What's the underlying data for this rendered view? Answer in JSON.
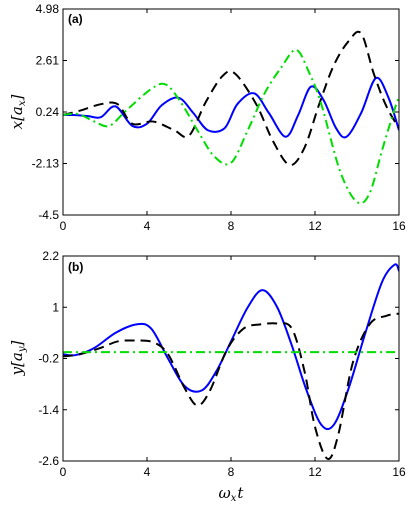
{
  "chart_data": [
    {
      "type": "line",
      "panel_label": "(a)",
      "ylabel": "x[a_x]",
      "ylabel_parts": [
        "x[a",
        "x",
        "]"
      ],
      "xlabel": "",
      "xlim": [
        0,
        16
      ],
      "ylim": [
        -4.5,
        4.98
      ],
      "xticks": [
        0,
        4,
        8,
        12,
        16
      ],
      "yticks": [
        -4.5,
        -2.13,
        0.24,
        2.61,
        4.98
      ],
      "ytick_labels": [
        "-4.5",
        "-2.13",
        "0.24",
        "2.61",
        "4.98"
      ],
      "grid": false,
      "series": [
        {
          "color": "#0000ff",
          "dash": "solid",
          "points": [
            [
              0,
              0.1
            ],
            [
              0.5,
              0.1
            ],
            [
              1.2,
              0.05
            ],
            [
              1.8,
              0.0
            ],
            [
              2.5,
              0.5
            ],
            [
              3.3,
              -0.4
            ],
            [
              4.0,
              -0.3
            ],
            [
              4.7,
              0.55
            ],
            [
              5.5,
              0.9
            ],
            [
              6.2,
              0.2
            ],
            [
              6.9,
              -0.6
            ],
            [
              7.7,
              -0.5
            ],
            [
              8.3,
              0.6
            ],
            [
              9.1,
              1.1
            ],
            [
              9.8,
              0.2
            ],
            [
              10.6,
              -0.9
            ],
            [
              11.2,
              0.1
            ],
            [
              11.8,
              1.4
            ],
            [
              12.4,
              0.8
            ],
            [
              13.0,
              -0.5
            ],
            [
              13.5,
              -0.9
            ],
            [
              14.2,
              0.2
            ],
            [
              14.9,
              1.8
            ],
            [
              15.5,
              0.9
            ],
            [
              16.0,
              -0.6
            ]
          ]
        },
        {
          "color": "#000000",
          "dash": "long-dash",
          "points": [
            [
              0,
              0.1
            ],
            [
              0.8,
              0.3
            ],
            [
              1.8,
              0.6
            ],
            [
              2.6,
              0.6
            ],
            [
              3.3,
              -0.3
            ],
            [
              4.3,
              -0.2
            ],
            [
              5.3,
              -0.6
            ],
            [
              6.0,
              -0.85
            ],
            [
              6.8,
              0.7
            ],
            [
              7.6,
              1.9
            ],
            [
              8.2,
              2.0
            ],
            [
              9.2,
              0.6
            ],
            [
              10.0,
              -1.1
            ],
            [
              10.8,
              -2.2
            ],
            [
              11.5,
              -1.4
            ],
            [
              12.2,
              0.6
            ],
            [
              12.9,
              2.4
            ],
            [
              13.6,
              3.5
            ],
            [
              14.2,
              3.85
            ],
            [
              14.8,
              2.0
            ],
            [
              15.4,
              0.5
            ],
            [
              16.0,
              -0.5
            ]
          ]
        },
        {
          "color": "#00dd00",
          "dash": "dash-dot",
          "points": [
            [
              0,
              0.1
            ],
            [
              0.7,
              0.15
            ],
            [
              1.5,
              -0.2
            ],
            [
              2.2,
              -0.4
            ],
            [
              3.0,
              0.3
            ],
            [
              4.2,
              1.3
            ],
            [
              4.9,
              1.5
            ],
            [
              5.6,
              0.7
            ],
            [
              6.4,
              -0.6
            ],
            [
              7.2,
              -1.8
            ],
            [
              8.0,
              -2.1
            ],
            [
              8.8,
              -0.6
            ],
            [
              9.6,
              1.1
            ],
            [
              10.4,
              2.3
            ],
            [
              11.1,
              3.1
            ],
            [
              11.7,
              2.1
            ],
            [
              12.3,
              0.6
            ],
            [
              13.2,
              -2.5
            ],
            [
              14.0,
              -3.9
            ],
            [
              14.6,
              -3.5
            ],
            [
              15.2,
              -1.5
            ],
            [
              15.8,
              0.4
            ],
            [
              16.0,
              0.9
            ]
          ]
        }
      ]
    },
    {
      "type": "line",
      "panel_label": "(b)",
      "ylabel": "y[a_y]",
      "ylabel_parts": [
        "y[a",
        "y",
        "]"
      ],
      "xlabel": "ω_x t",
      "xlabel_parts": [
        "ω",
        "x",
        "t"
      ],
      "xlim": [
        0,
        16
      ],
      "ylim": [
        -2.6,
        2.2
      ],
      "xticks": [
        0,
        4,
        8,
        12,
        16
      ],
      "yticks": [
        -2.6,
        -1.4,
        -0.2,
        1,
        2.2
      ],
      "ytick_labels": [
        "-2.6",
        "-1.4",
        "-0.2",
        "1",
        "2.2"
      ],
      "grid": false,
      "series": [
        {
          "color": "#0000ff",
          "dash": "solid",
          "points": [
            [
              0,
              -0.1
            ],
            [
              0.6,
              -0.12
            ],
            [
              1.5,
              0.05
            ],
            [
              2.5,
              0.4
            ],
            [
              3.5,
              0.6
            ],
            [
              4.2,
              0.5
            ],
            [
              5.0,
              -0.2
            ],
            [
              5.8,
              -0.85
            ],
            [
              6.6,
              -0.95
            ],
            [
              7.3,
              -0.5
            ],
            [
              8.0,
              0.2
            ],
            [
              8.8,
              1.0
            ],
            [
              9.5,
              1.4
            ],
            [
              10.2,
              1.0
            ],
            [
              10.9,
              0.1
            ],
            [
              11.6,
              -0.95
            ],
            [
              12.3,
              -1.75
            ],
            [
              12.9,
              -1.75
            ],
            [
              13.6,
              -0.9
            ],
            [
              14.4,
              0.4
            ],
            [
              15.2,
              1.6
            ],
            [
              15.8,
              2.0
            ],
            [
              16.0,
              1.85
            ]
          ]
        },
        {
          "color": "#000000",
          "dash": "long-dash",
          "points": [
            [
              0,
              -0.15
            ],
            [
              0.8,
              -0.1
            ],
            [
              1.8,
              0.05
            ],
            [
              2.6,
              0.2
            ],
            [
              3.4,
              0.22
            ],
            [
              4.3,
              0.18
            ],
            [
              5.0,
              -0.1
            ],
            [
              5.8,
              -0.9
            ],
            [
              6.4,
              -1.3
            ],
            [
              7.0,
              -0.95
            ],
            [
              7.8,
              0.0
            ],
            [
              8.6,
              0.5
            ],
            [
              9.4,
              0.6
            ],
            [
              10.2,
              0.62
            ],
            [
              10.9,
              0.5
            ],
            [
              11.5,
              -0.5
            ],
            [
              12.0,
              -1.8
            ],
            [
              12.6,
              -2.55
            ],
            [
              13.1,
              -2.0
            ],
            [
              13.8,
              -0.3
            ],
            [
              14.6,
              0.6
            ],
            [
              15.4,
              0.8
            ],
            [
              16.0,
              0.85
            ]
          ]
        },
        {
          "color": "#00dd00",
          "dash": "dash-dot",
          "points": [
            [
              0,
              -0.05
            ],
            [
              16,
              -0.05
            ]
          ]
        }
      ]
    }
  ]
}
